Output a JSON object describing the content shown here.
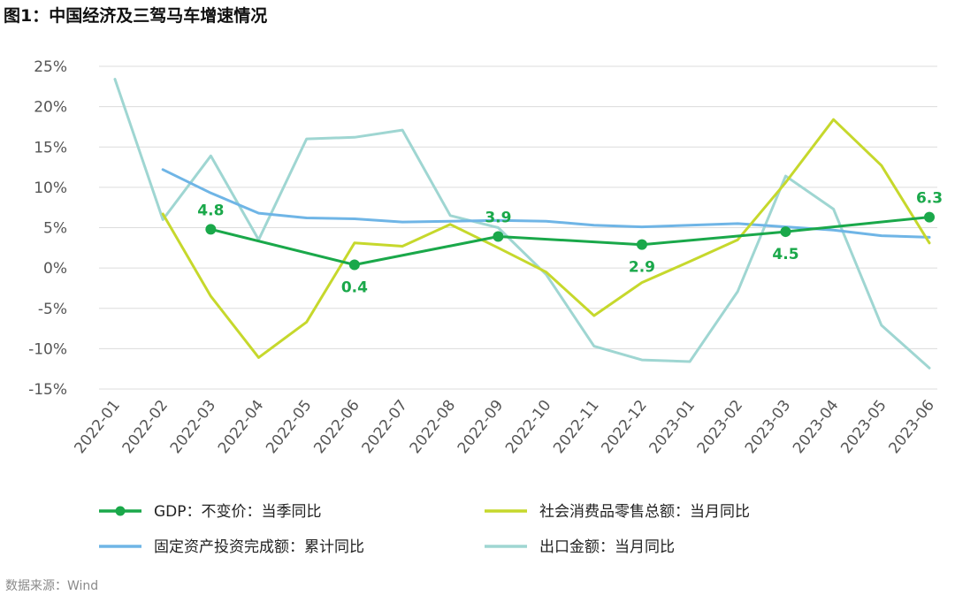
{
  "title": "图1：中国经济及三驾马车增速情况",
  "source": "数据来源：Wind",
  "chart_data": {
    "type": "line",
    "title": "图1：中国经济及三驾马车增速情况",
    "xlabel": "",
    "ylabel": "",
    "ylim": [
      -15,
      25
    ],
    "yticks": [
      25,
      20,
      15,
      10,
      5,
      0,
      -5,
      -10,
      -15
    ],
    "ytick_labels": [
      "25%",
      "20%",
      "15%",
      "10%",
      "5%",
      "0%",
      "-5%",
      "-10%",
      "-15%"
    ],
    "grid": true,
    "legend_position": "bottom",
    "categories": [
      "2022-01",
      "2022-02",
      "2022-03",
      "2022-04",
      "2022-05",
      "2022-06",
      "2022-07",
      "2022-08",
      "2022-09",
      "2022-10",
      "2022-11",
      "2022-12",
      "2023-01",
      "2023-02",
      "2023-03",
      "2023-04",
      "2023-05",
      "2023-06"
    ],
    "series": [
      {
        "name": "GDP：不变价：当季同比",
        "color": "#1aa84a",
        "markers": true,
        "values": [
          null,
          null,
          4.8,
          null,
          null,
          0.4,
          null,
          null,
          3.9,
          null,
          null,
          2.9,
          null,
          null,
          4.5,
          null,
          null,
          6.3
        ],
        "labels": [
          "",
          "",
          "4.8",
          "",
          "",
          "0.4",
          "",
          "",
          "3.9",
          "",
          "",
          "2.9",
          "",
          "",
          "4.5",
          "",
          "",
          "6.3"
        ]
      },
      {
        "name": "社会消费品零售总额：当月同比",
        "color": "#c6d82c",
        "markers": false,
        "values": [
          null,
          6.7,
          -3.5,
          -11.1,
          -6.7,
          3.1,
          2.7,
          5.4,
          2.5,
          -0.5,
          -5.9,
          -1.8,
          0.8,
          3.5,
          10.6,
          18.4,
          12.7,
          3.1
        ]
      },
      {
        "name": "固定资产投资完成额：累计同比",
        "color": "#6fb5e6",
        "markers": false,
        "values": [
          null,
          12.2,
          9.3,
          6.8,
          6.2,
          6.1,
          5.7,
          5.8,
          5.9,
          5.8,
          5.3,
          5.1,
          5.3,
          5.5,
          5.1,
          4.7,
          4.0,
          3.8
        ]
      },
      {
        "name": "出口金额：当月同比",
        "color": "#9fd6d2",
        "markers": false,
        "values": [
          23.4,
          6.0,
          13.9,
          3.5,
          16.0,
          16.2,
          17.1,
          6.5,
          5.0,
          -0.8,
          -9.7,
          -11.4,
          -11.6,
          -2.9,
          11.4,
          7.3,
          -7.1,
          -12.4
        ]
      }
    ],
    "legend_order": [
      0,
      1,
      2,
      3
    ]
  }
}
